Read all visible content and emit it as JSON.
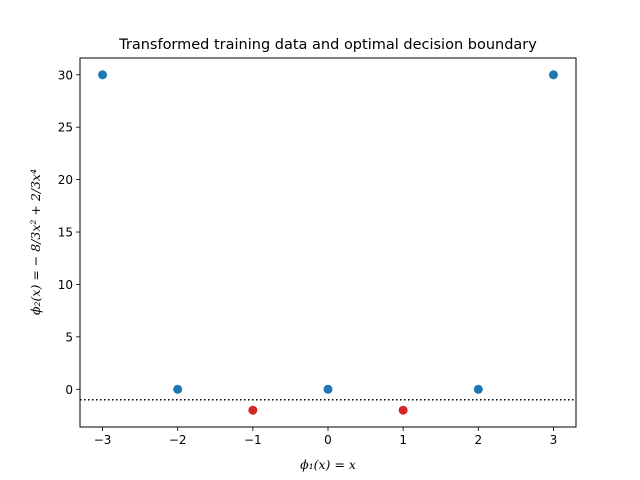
{
  "chart_data": {
    "type": "scatter",
    "title": "Transformed training data and optimal decision boundary",
    "xlabel": "ϕ₁(x) = x",
    "ylabel": "ϕ₂(x) = − 8/3x² + 2/3x⁴",
    "xlim": [
      -3.3,
      3.3
    ],
    "ylim": [
      -3.6,
      31.6
    ],
    "xticks": [
      -3,
      -2,
      -1,
      0,
      1,
      2,
      3
    ],
    "xtick_labels": [
      "−3",
      "−2",
      "−1",
      "0",
      "1",
      "2",
      "3"
    ],
    "yticks": [
      0,
      5,
      10,
      15,
      20,
      25,
      30
    ],
    "ytick_labels": [
      "0",
      "5",
      "10",
      "15",
      "20",
      "25",
      "30"
    ],
    "grid": false,
    "series": [
      {
        "color": "#1f77b4",
        "points": [
          {
            "x": -3,
            "y": 30
          },
          {
            "x": -2,
            "y": 0
          },
          {
            "x": 0,
            "y": 0
          },
          {
            "x": 2,
            "y": 0
          },
          {
            "x": 3,
            "y": 30
          }
        ]
      },
      {
        "color": "#d62728",
        "points": [
          {
            "x": -1,
            "y": -2
          },
          {
            "x": 1,
            "y": -2
          }
        ]
      }
    ],
    "decision_boundary": {
      "y": -1,
      "style": "dotted",
      "color": "#000000"
    }
  }
}
